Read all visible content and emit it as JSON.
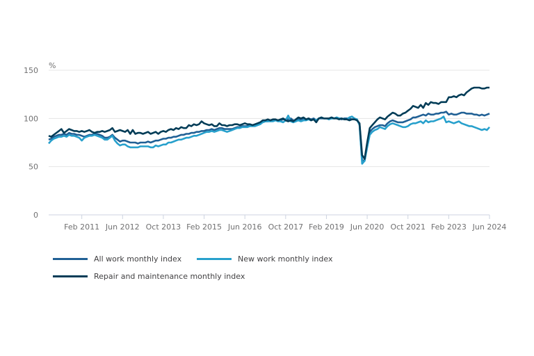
{
  "chart_data": {
    "type": "line",
    "title": "",
    "xlabel": "",
    "ylabel": "%",
    "ylim": [
      0,
      150
    ],
    "yticks": [
      0,
      50,
      100,
      150
    ],
    "x_range": [
      "Jan 2010",
      "Jun 2024"
    ],
    "xticks": [
      "Feb 2011",
      "Jun 2012",
      "Oct 2013",
      "Feb 2015",
      "Jun 2016",
      "Oct 2017",
      "Feb 2019",
      "Jun 2020",
      "Oct 2021",
      "Feb 2023",
      "Jun 2024"
    ],
    "grid": true,
    "legend_position": "bottom",
    "series": [
      {
        "name": "All work monthly index",
        "color": "#206095",
        "values": [
          78,
          79,
          81,
          82,
          83,
          83,
          84,
          83,
          85,
          84,
          84,
          83,
          83,
          82,
          81,
          82,
          83,
          83,
          84,
          84,
          83,
          82,
          80,
          80,
          81,
          83,
          80,
          78,
          76,
          77,
          77,
          76,
          75,
          75,
          75,
          74,
          75,
          75,
          75,
          76,
          75,
          76,
          77,
          77,
          78,
          79,
          79,
          80,
          80,
          81,
          81,
          82,
          83,
          83,
          84,
          84,
          85,
          85,
          86,
          86,
          87,
          87,
          88,
          88,
          89,
          88,
          89,
          90,
          90,
          89,
          89,
          89,
          89,
          90,
          91,
          91,
          92,
          92,
          92,
          93,
          93,
          93,
          94,
          95,
          96,
          97,
          97,
          98,
          98,
          98,
          98,
          98,
          99,
          99,
          99,
          100,
          98,
          98,
          99,
          99,
          100,
          99,
          100,
          99,
          100,
          98,
          100,
          100,
          100,
          100,
          100,
          100,
          100,
          101,
          100,
          99,
          100,
          100,
          100,
          99,
          99,
          99,
          94,
          57,
          56,
          72,
          86,
          89,
          91,
          92,
          93,
          93,
          92,
          95,
          97,
          98,
          97,
          96,
          96,
          96,
          97,
          98,
          99,
          101,
          101,
          102,
          103,
          104,
          103,
          105,
          104,
          104,
          105,
          105,
          106,
          106,
          107,
          104,
          105,
          104,
          104,
          105,
          106,
          106,
          105,
          105,
          105,
          104,
          104,
          103,
          104,
          103,
          104,
          105
        ]
      },
      {
        "name": "New work monthly index",
        "color": "#27a0cc",
        "values": [
          74,
          77,
          79,
          80,
          81,
          81,
          82,
          81,
          83,
          82,
          82,
          81,
          80,
          77,
          80,
          81,
          82,
          82,
          83,
          82,
          81,
          80,
          78,
          78,
          80,
          82,
          77,
          74,
          72,
          73,
          73,
          71,
          70,
          70,
          70,
          70,
          71,
          71,
          71,
          71,
          70,
          70,
          72,
          71,
          72,
          73,
          73,
          75,
          75,
          76,
          77,
          78,
          78,
          79,
          80,
          80,
          81,
          82,
          82,
          83,
          84,
          85,
          86,
          86,
          87,
          86,
          87,
          88,
          88,
          87,
          86,
          87,
          88,
          89,
          90,
          90,
          91,
          91,
          91,
          92,
          92,
          92,
          93,
          94,
          96,
          97,
          97,
          97,
          97,
          98,
          97,
          97,
          96,
          98,
          103,
          97,
          96,
          97,
          98,
          97,
          98,
          98,
          99,
          98,
          99,
          98,
          100,
          101,
          100,
          100,
          99,
          100,
          100,
          101,
          100,
          100,
          99,
          99,
          101,
          102,
          100,
          99,
          93,
          53,
          56,
          70,
          83,
          86,
          88,
          89,
          91,
          90,
          89,
          92,
          94,
          95,
          94,
          93,
          92,
          91,
          91,
          92,
          94,
          95,
          95,
          96,
          97,
          95,
          98,
          96,
          97,
          97,
          98,
          99,
          100,
          102,
          96,
          97,
          96,
          95,
          96,
          97,
          95,
          94,
          93,
          92,
          92,
          91,
          90,
          89,
          88,
          89,
          88,
          91
        ]
      },
      {
        "name": "Repair and maintenance monthly index",
        "color": "#003c57",
        "values": [
          82,
          81,
          83,
          85,
          87,
          89,
          85,
          87,
          89,
          88,
          87,
          87,
          86,
          87,
          86,
          87,
          88,
          86,
          85,
          86,
          86,
          87,
          86,
          87,
          88,
          90,
          86,
          87,
          88,
          87,
          86,
          88,
          84,
          88,
          84,
          85,
          85,
          84,
          85,
          86,
          84,
          85,
          86,
          84,
          86,
          87,
          86,
          88,
          89,
          88,
          90,
          89,
          91,
          90,
          90,
          93,
          92,
          94,
          93,
          94,
          97,
          95,
          94,
          93,
          94,
          92,
          92,
          95,
          93,
          93,
          92,
          93,
          93,
          94,
          94,
          93,
          94,
          95,
          94,
          94,
          93,
          94,
          95,
          96,
          98,
          98,
          99,
          98,
          99,
          99,
          98,
          99,
          100,
          98,
          97,
          98,
          97,
          99,
          101,
          100,
          101,
          99,
          100,
          98,
          99,
          96,
          100,
          101,
          100,
          100,
          100,
          101,
          100,
          100,
          99,
          100,
          99,
          99,
          98,
          99,
          99,
          98,
          95,
          62,
          58,
          75,
          90,
          93,
          96,
          99,
          101,
          100,
          99,
          102,
          104,
          106,
          105,
          103,
          103,
          105,
          106,
          108,
          110,
          113,
          112,
          111,
          114,
          111,
          116,
          114,
          117,
          116,
          116,
          115,
          117,
          117,
          117,
          122,
          122,
          123,
          122,
          124,
          125,
          124,
          127,
          129,
          131,
          132,
          132,
          132,
          131,
          131,
          132,
          132
        ]
      }
    ]
  }
}
